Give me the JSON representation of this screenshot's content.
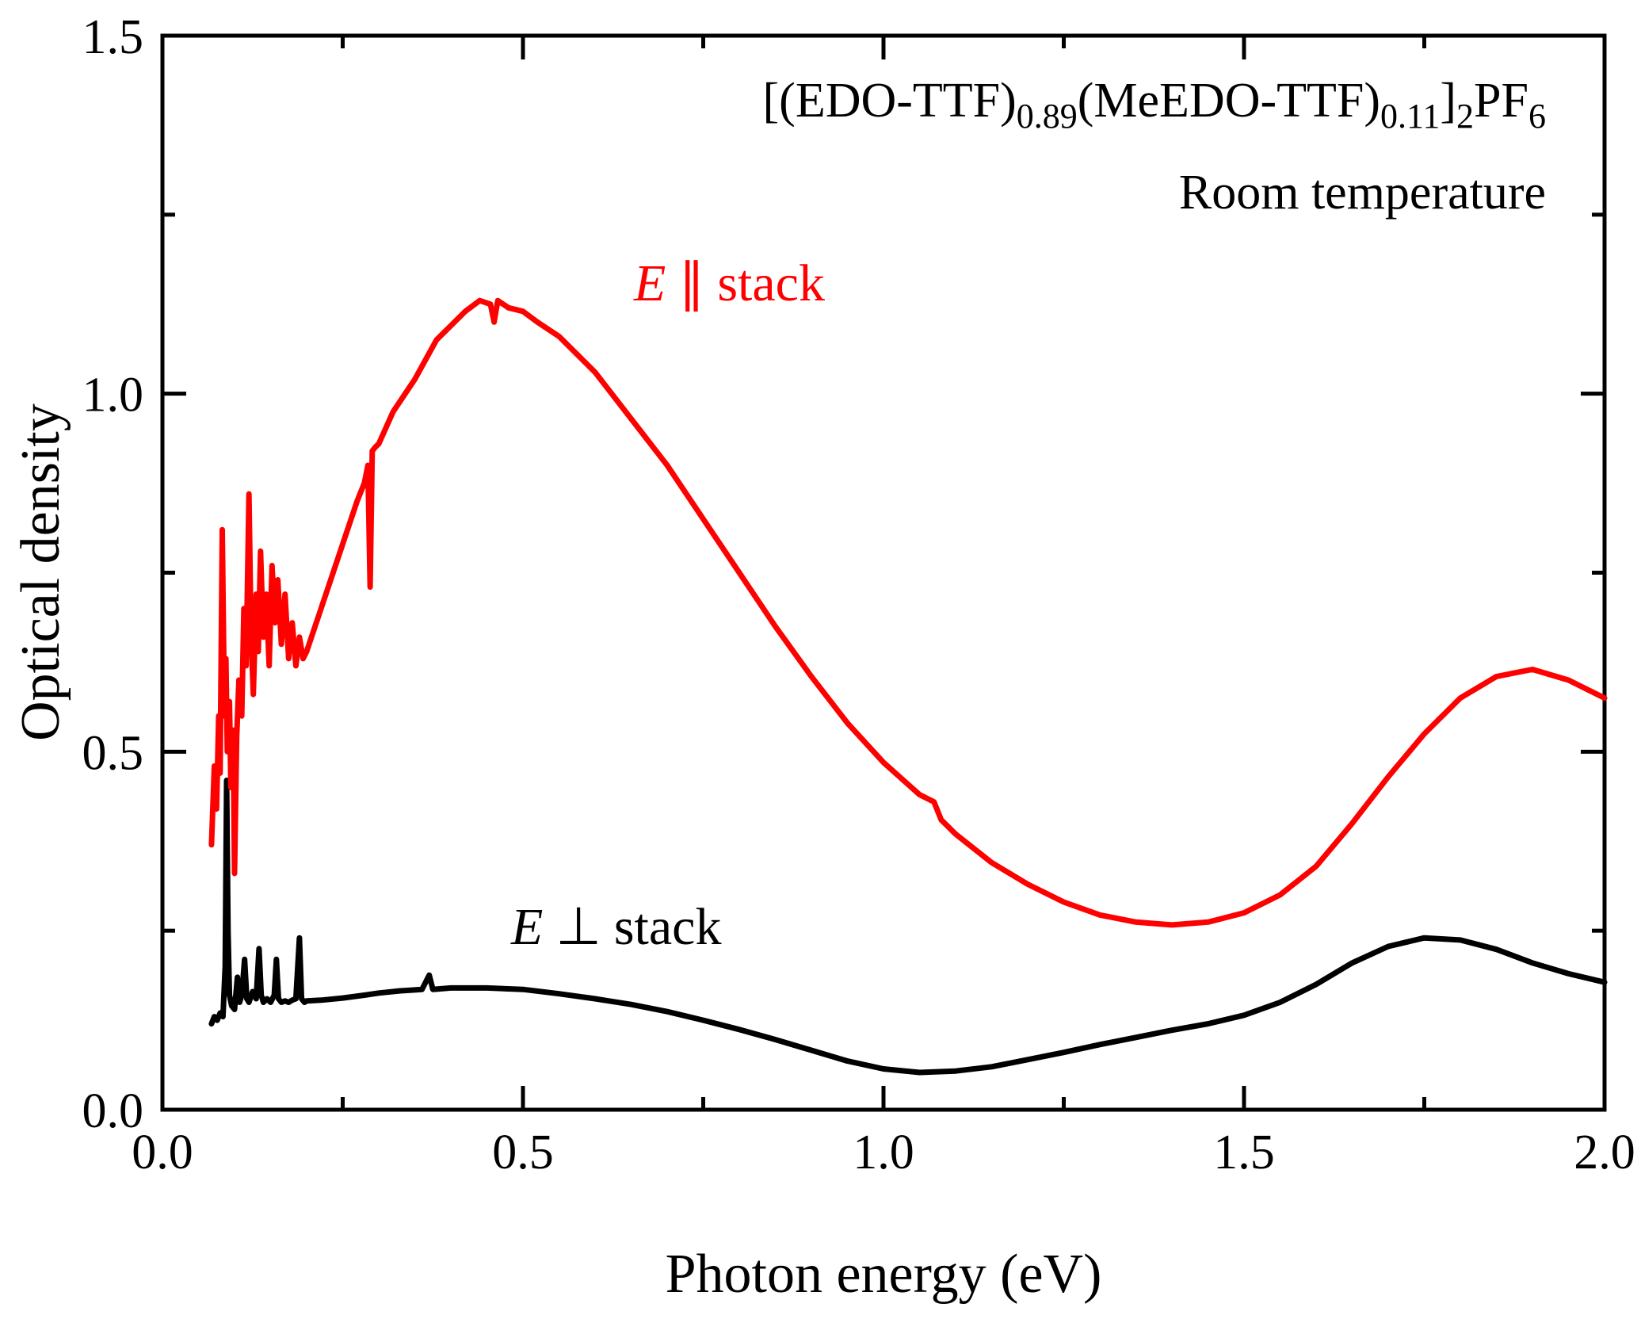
{
  "figure": {
    "background": "#ffffff",
    "title": {
      "parts": [
        {
          "text": "[(EDO-TTF)",
          "sub": false
        },
        {
          "text": "0.89",
          "sub": true
        },
        {
          "text": "(MeEDO-TTF)",
          "sub": false
        },
        {
          "text": "0.11",
          "sub": true
        },
        {
          "text": "]",
          "sub": false
        },
        {
          "text": "2",
          "sub": true
        },
        {
          "text": "PF",
          "sub": false
        },
        {
          "text": "6",
          "sub": true
        }
      ],
      "subtitle": "Room temperature"
    },
    "legend": {
      "parallel": {
        "symbol": "E",
        "separator": "∥",
        "label": "stack",
        "color": "#ff0000"
      },
      "perpendicular": {
        "symbol": "E",
        "separator": "⊥",
        "label": "stack",
        "color": "#000000"
      }
    }
  },
  "chart_data": {
    "type": "line",
    "title": "[(EDO-TTF)0.89(MeEDO-TTF)0.11]2PF6",
    "subtitle": "Room temperature",
    "xlabel": "Photon energy (eV)",
    "ylabel": "Optical density",
    "xlim": [
      0.0,
      2.0
    ],
    "ylim": [
      0.0,
      1.5
    ],
    "x_ticks": [
      0.0,
      0.5,
      1.0,
      1.5,
      2.0
    ],
    "x_tick_labels": [
      "0.0",
      "0.5",
      "1.0",
      "1.5",
      "2.0"
    ],
    "x_minor_ticks": [
      0.25,
      0.75,
      1.25,
      1.75
    ],
    "y_ticks": [
      0.0,
      0.5,
      1.0,
      1.5
    ],
    "y_tick_labels": [
      "0.0",
      "0.5",
      "1.0",
      "1.5"
    ],
    "y_minor_ticks": [
      0.25,
      0.75,
      1.25
    ],
    "grid": false,
    "legend_position": "inline-annotations",
    "series": [
      {
        "key": "parallel",
        "name": "E ∥ stack",
        "color": "#ff0000",
        "points": [
          [
            0.068,
            0.37
          ],
          [
            0.072,
            0.48
          ],
          [
            0.075,
            0.42
          ],
          [
            0.078,
            0.55
          ],
          [
            0.08,
            0.47
          ],
          [
            0.083,
            0.81
          ],
          [
            0.086,
            0.55
          ],
          [
            0.088,
            0.63
          ],
          [
            0.09,
            0.5
          ],
          [
            0.093,
            0.57
          ],
          [
            0.095,
            0.45
          ],
          [
            0.098,
            0.53
          ],
          [
            0.1,
            0.33
          ],
          [
            0.103,
            0.52
          ],
          [
            0.106,
            0.6
          ],
          [
            0.11,
            0.55
          ],
          [
            0.113,
            0.7
          ],
          [
            0.116,
            0.62
          ],
          [
            0.12,
            0.86
          ],
          [
            0.123,
            0.66
          ],
          [
            0.126,
            0.58
          ],
          [
            0.13,
            0.72
          ],
          [
            0.133,
            0.64
          ],
          [
            0.136,
            0.78
          ],
          [
            0.14,
            0.66
          ],
          [
            0.144,
            0.72
          ],
          [
            0.148,
            0.62
          ],
          [
            0.152,
            0.76
          ],
          [
            0.156,
            0.68
          ],
          [
            0.16,
            0.74
          ],
          [
            0.165,
            0.65
          ],
          [
            0.17,
            0.72
          ],
          [
            0.175,
            0.63
          ],
          [
            0.18,
            0.68
          ],
          [
            0.185,
            0.62
          ],
          [
            0.19,
            0.66
          ],
          [
            0.195,
            0.63
          ],
          [
            0.2,
            0.64
          ],
          [
            0.21,
            0.67
          ],
          [
            0.22,
            0.7
          ],
          [
            0.23,
            0.73
          ],
          [
            0.24,
            0.76
          ],
          [
            0.25,
            0.79
          ],
          [
            0.26,
            0.82
          ],
          [
            0.27,
            0.85
          ],
          [
            0.28,
            0.875
          ],
          [
            0.285,
            0.9
          ],
          [
            0.288,
            0.73
          ],
          [
            0.291,
            0.92
          ],
          [
            0.295,
            0.925
          ],
          [
            0.3,
            0.93
          ],
          [
            0.32,
            0.975
          ],
          [
            0.35,
            1.02
          ],
          [
            0.38,
            1.075
          ],
          [
            0.4,
            1.095
          ],
          [
            0.42,
            1.115
          ],
          [
            0.44,
            1.13
          ],
          [
            0.455,
            1.125
          ],
          [
            0.46,
            1.1
          ],
          [
            0.465,
            1.13
          ],
          [
            0.48,
            1.12
          ],
          [
            0.5,
            1.115
          ],
          [
            0.52,
            1.1
          ],
          [
            0.55,
            1.08
          ],
          [
            0.6,
            1.03
          ],
          [
            0.65,
            0.965
          ],
          [
            0.7,
            0.9
          ],
          [
            0.75,
            0.825
          ],
          [
            0.8,
            0.75
          ],
          [
            0.85,
            0.675
          ],
          [
            0.9,
            0.605
          ],
          [
            0.95,
            0.54
          ],
          [
            1.0,
            0.485
          ],
          [
            1.05,
            0.44
          ],
          [
            1.07,
            0.43
          ],
          [
            1.08,
            0.405
          ],
          [
            1.1,
            0.385
          ],
          [
            1.15,
            0.345
          ],
          [
            1.2,
            0.315
          ],
          [
            1.25,
            0.29
          ],
          [
            1.3,
            0.272
          ],
          [
            1.35,
            0.262
          ],
          [
            1.4,
            0.258
          ],
          [
            1.45,
            0.262
          ],
          [
            1.5,
            0.275
          ],
          [
            1.55,
            0.3
          ],
          [
            1.6,
            0.34
          ],
          [
            1.65,
            0.4
          ],
          [
            1.7,
            0.465
          ],
          [
            1.75,
            0.525
          ],
          [
            1.8,
            0.575
          ],
          [
            1.85,
            0.605
          ],
          [
            1.9,
            0.615
          ],
          [
            1.95,
            0.6
          ],
          [
            2.0,
            0.575
          ]
        ]
      },
      {
        "key": "perpendicular",
        "name": "E ⊥ stack",
        "color": "#000000",
        "points": [
          [
            0.068,
            0.12
          ],
          [
            0.072,
            0.13
          ],
          [
            0.076,
            0.125
          ],
          [
            0.08,
            0.135
          ],
          [
            0.084,
            0.13
          ],
          [
            0.087,
            0.2
          ],
          [
            0.089,
            0.46
          ],
          [
            0.091,
            0.25
          ],
          [
            0.093,
            0.16
          ],
          [
            0.096,
            0.145
          ],
          [
            0.1,
            0.14
          ],
          [
            0.104,
            0.185
          ],
          [
            0.107,
            0.15
          ],
          [
            0.11,
            0.16
          ],
          [
            0.114,
            0.21
          ],
          [
            0.117,
            0.155
          ],
          [
            0.12,
            0.15
          ],
          [
            0.125,
            0.165
          ],
          [
            0.13,
            0.155
          ],
          [
            0.134,
            0.225
          ],
          [
            0.137,
            0.16
          ],
          [
            0.14,
            0.15
          ],
          [
            0.145,
            0.155
          ],
          [
            0.15,
            0.15
          ],
          [
            0.155,
            0.16
          ],
          [
            0.158,
            0.21
          ],
          [
            0.161,
            0.155
          ],
          [
            0.165,
            0.15
          ],
          [
            0.17,
            0.152
          ],
          [
            0.175,
            0.15
          ],
          [
            0.18,
            0.153
          ],
          [
            0.185,
            0.155
          ],
          [
            0.19,
            0.24
          ],
          [
            0.193,
            0.155
          ],
          [
            0.197,
            0.15
          ],
          [
            0.2,
            0.152
          ],
          [
            0.22,
            0.153
          ],
          [
            0.25,
            0.156
          ],
          [
            0.28,
            0.16
          ],
          [
            0.3,
            0.163
          ],
          [
            0.33,
            0.166
          ],
          [
            0.36,
            0.168
          ],
          [
            0.37,
            0.188
          ],
          [
            0.375,
            0.168
          ],
          [
            0.4,
            0.17
          ],
          [
            0.45,
            0.17
          ],
          [
            0.5,
            0.168
          ],
          [
            0.55,
            0.162
          ],
          [
            0.6,
            0.155
          ],
          [
            0.65,
            0.147
          ],
          [
            0.7,
            0.137
          ],
          [
            0.75,
            0.125
          ],
          [
            0.8,
            0.112
          ],
          [
            0.85,
            0.098
          ],
          [
            0.9,
            0.083
          ],
          [
            0.95,
            0.068
          ],
          [
            1.0,
            0.057
          ],
          [
            1.05,
            0.052
          ],
          [
            1.1,
            0.054
          ],
          [
            1.15,
            0.06
          ],
          [
            1.2,
            0.07
          ],
          [
            1.25,
            0.08
          ],
          [
            1.3,
            0.091
          ],
          [
            1.35,
            0.101
          ],
          [
            1.4,
            0.111
          ],
          [
            1.45,
            0.12
          ],
          [
            1.5,
            0.132
          ],
          [
            1.55,
            0.15
          ],
          [
            1.6,
            0.175
          ],
          [
            1.65,
            0.205
          ],
          [
            1.7,
            0.228
          ],
          [
            1.75,
            0.24
          ],
          [
            1.8,
            0.237
          ],
          [
            1.85,
            0.224
          ],
          [
            1.9,
            0.205
          ],
          [
            1.95,
            0.19
          ],
          [
            2.0,
            0.178
          ]
        ]
      }
    ]
  }
}
